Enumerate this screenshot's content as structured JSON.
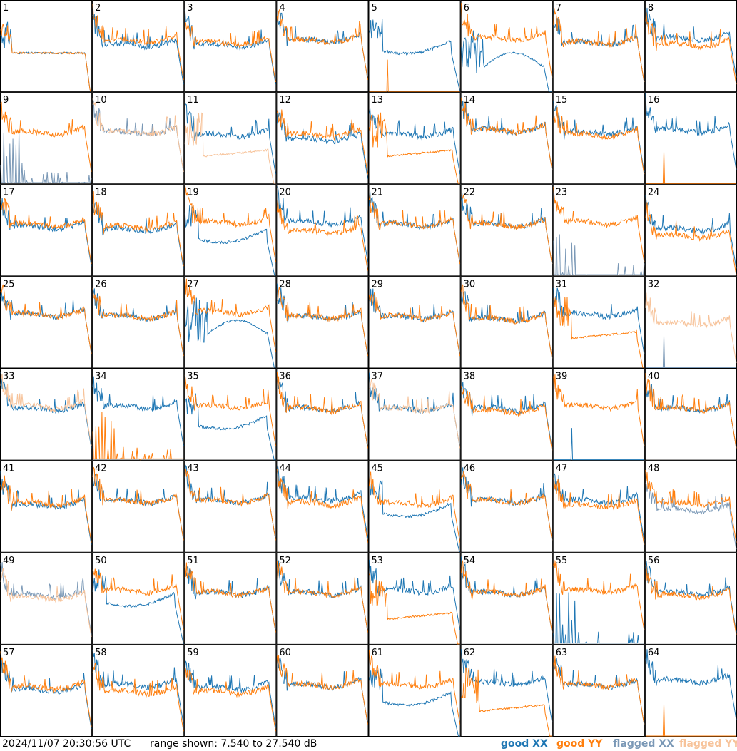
{
  "footer": {
    "timestamp": "2024/11/07 20:30:56 UTC",
    "range": "range shown: 7.540 to 27.540 dB"
  },
  "legend": [
    {
      "prefix": "good",
      "pol": "XX",
      "color": "#1f77b4"
    },
    {
      "prefix": "good",
      "pol": "YY",
      "color": "#ff7f0e"
    },
    {
      "prefix": "flagged",
      "pol": "XX",
      "color": "#7a98b6"
    },
    {
      "prefix": "flagged",
      "pol": "YY",
      "color": "#f7c39a"
    }
  ],
  "chart_data": {
    "type": "line",
    "layout": "small-multiples 8x8",
    "ylim": [
      7.54,
      27.54
    ],
    "y_unit": "dB",
    "panels": [
      {
        "id": "1",
        "xx": {
          "shape": "plateau",
          "level": 16,
          "flagged": false
        },
        "yy": {
          "shape": "plateau",
          "level": 16,
          "flagged": false
        }
      },
      {
        "id": "2",
        "xx": {
          "shape": "standard",
          "level": 17.5,
          "flagged": false
        },
        "yy": {
          "shape": "standard",
          "level": 18.5,
          "flagged": false
        }
      },
      {
        "id": "3",
        "xx": {
          "shape": "standard",
          "level": 17.5,
          "flagged": false
        },
        "yy": {
          "shape": "standard",
          "level": 18,
          "flagged": false
        }
      },
      {
        "id": "4",
        "xx": {
          "shape": "standard",
          "level": 18.5,
          "flagged": false
        },
        "yy": {
          "shape": "standard",
          "level": 18.5,
          "flagged": false
        }
      },
      {
        "id": "5",
        "xx": {
          "shape": "bowl",
          "level": 16.5,
          "flagged": false
        },
        "yy": {
          "shape": "spike",
          "level": 10,
          "flagged": false
        }
      },
      {
        "id": "6",
        "xx": {
          "shape": "dip",
          "level": 14,
          "flagged": false
        },
        "yy": {
          "shape": "standard",
          "level": 19,
          "flagged": false
        }
      },
      {
        "id": "7",
        "xx": {
          "shape": "standard",
          "level": 18,
          "flagged": false
        },
        "yy": {
          "shape": "standard",
          "level": 18,
          "flagged": false
        }
      },
      {
        "id": "8",
        "xx": {
          "shape": "standard",
          "level": 19,
          "flagged": false
        },
        "yy": {
          "shape": "standard",
          "level": 17.5,
          "flagged": false
        }
      },
      {
        "id": "9",
        "xx": {
          "shape": "spiky",
          "level": 9,
          "flagged": true
        },
        "yy": {
          "shape": "standard",
          "level": 18.5,
          "flagged": false
        }
      },
      {
        "id": "10",
        "xx": {
          "shape": "standard",
          "level": 18.5,
          "flagged": true
        },
        "yy": {
          "shape": "standard",
          "level": 18.5,
          "flagged": true
        }
      },
      {
        "id": "11",
        "xx": {
          "shape": "standard",
          "level": 18,
          "flagged": false
        },
        "yy": {
          "shape": "low",
          "level": 13.5,
          "flagged": true
        }
      },
      {
        "id": "12",
        "xx": {
          "shape": "standard",
          "level": 17,
          "flagged": false
        },
        "yy": {
          "shape": "standard",
          "level": 18,
          "flagged": false
        }
      },
      {
        "id": "13",
        "xx": {
          "shape": "standard",
          "level": 18,
          "flagged": false
        },
        "yy": {
          "shape": "low",
          "level": 13.5,
          "flagged": false
        }
      },
      {
        "id": "14",
        "xx": {
          "shape": "standard",
          "level": 19,
          "flagged": false
        },
        "yy": {
          "shape": "standard",
          "level": 19,
          "flagged": false
        }
      },
      {
        "id": "15",
        "xx": {
          "shape": "standard",
          "level": 18.5,
          "flagged": false
        },
        "yy": {
          "shape": "standard",
          "level": 18,
          "flagged": false
        }
      },
      {
        "id": "16",
        "xx": {
          "shape": "standard",
          "level": 19,
          "flagged": false
        },
        "yy": {
          "shape": "spike",
          "level": 10,
          "flagged": false
        }
      },
      {
        "id": "17",
        "xx": {
          "shape": "standard",
          "level": 18,
          "flagged": false
        },
        "yy": {
          "shape": "standard",
          "level": 18.5,
          "flagged": false
        }
      },
      {
        "id": "18",
        "xx": {
          "shape": "standard",
          "level": 17.5,
          "flagged": false
        },
        "yy": {
          "shape": "standard",
          "level": 18,
          "flagged": false
        }
      },
      {
        "id": "19",
        "xx": {
          "shape": "bowl",
          "level": 15.5,
          "flagged": false
        },
        "yy": {
          "shape": "standard",
          "level": 19,
          "flagged": false
        }
      },
      {
        "id": "20",
        "xx": {
          "shape": "standard",
          "level": 19,
          "flagged": false
        },
        "yy": {
          "shape": "standard",
          "level": 17,
          "flagged": false
        }
      },
      {
        "id": "21",
        "xx": {
          "shape": "standard",
          "level": 18.5,
          "flagged": false
        },
        "yy": {
          "shape": "standard",
          "level": 18.5,
          "flagged": false
        }
      },
      {
        "id": "22",
        "xx": {
          "shape": "standard",
          "level": 18.5,
          "flagged": false
        },
        "yy": {
          "shape": "standard",
          "level": 18.5,
          "flagged": false
        }
      },
      {
        "id": "23",
        "xx": {
          "shape": "spiky",
          "level": 9.5,
          "flagged": true
        },
        "yy": {
          "shape": "standard",
          "level": 19,
          "flagged": false
        }
      },
      {
        "id": "24",
        "xx": {
          "shape": "standard",
          "level": 17.5,
          "flagged": false
        },
        "yy": {
          "shape": "standard",
          "level": 16,
          "flagged": false
        }
      },
      {
        "id": "25",
        "xx": {
          "shape": "standard",
          "level": 19,
          "flagged": false
        },
        "yy": {
          "shape": "standard",
          "level": 19,
          "flagged": false
        }
      },
      {
        "id": "26",
        "xx": {
          "shape": "standard",
          "level": 18.5,
          "flagged": false
        },
        "yy": {
          "shape": "standard",
          "level": 18.5,
          "flagged": false
        }
      },
      {
        "id": "27",
        "xx": {
          "shape": "dip",
          "level": 16,
          "flagged": false
        },
        "yy": {
          "shape": "standard",
          "level": 19.5,
          "flagged": false
        }
      },
      {
        "id": "28",
        "xx": {
          "shape": "standard",
          "level": 18.5,
          "flagged": false
        },
        "yy": {
          "shape": "standard",
          "level": 18.5,
          "flagged": false
        }
      },
      {
        "id": "29",
        "xx": {
          "shape": "standard",
          "level": 18.5,
          "flagged": false
        },
        "yy": {
          "shape": "standard",
          "level": 18.5,
          "flagged": false
        }
      },
      {
        "id": "30",
        "xx": {
          "shape": "standard",
          "level": 18,
          "flagged": false
        },
        "yy": {
          "shape": "standard",
          "level": 18,
          "flagged": false
        }
      },
      {
        "id": "31",
        "xx": {
          "shape": "standard",
          "level": 19,
          "flagged": false
        },
        "yy": {
          "shape": "low",
          "level": 14,
          "flagged": false
        }
      },
      {
        "id": "32",
        "xx": {
          "shape": "spike",
          "level": 9,
          "flagged": true
        },
        "yy": {
          "shape": "standard",
          "level": 17,
          "flagged": true
        }
      },
      {
        "id": "33",
        "xx": {
          "shape": "standard",
          "level": 18.5,
          "flagged": false
        },
        "yy": {
          "shape": "standard",
          "level": 19,
          "flagged": true
        }
      },
      {
        "id": "34",
        "xx": {
          "shape": "standard",
          "level": 19,
          "flagged": false
        },
        "yy": {
          "shape": "spiky",
          "level": 8,
          "flagged": false
        }
      },
      {
        "id": "35",
        "xx": {
          "shape": "bowl",
          "level": 15,
          "flagged": false
        },
        "yy": {
          "shape": "standard",
          "level": 19,
          "flagged": false
        }
      },
      {
        "id": "36",
        "xx": {
          "shape": "standard",
          "level": 18.5,
          "flagged": false
        },
        "yy": {
          "shape": "standard",
          "level": 18.5,
          "flagged": false
        }
      },
      {
        "id": "37",
        "xx": {
          "shape": "standard",
          "level": 18.5,
          "flagged": false
        },
        "yy": {
          "shape": "standard",
          "level": 18.5,
          "flagged": true
        }
      },
      {
        "id": "38",
        "xx": {
          "shape": "standard",
          "level": 18.5,
          "flagged": false
        },
        "yy": {
          "shape": "standard",
          "level": 18,
          "flagged": false
        }
      },
      {
        "id": "39",
        "xx": {
          "shape": "spike",
          "level": 8,
          "flagged": false
        },
        "yy": {
          "shape": "standard",
          "level": 19,
          "flagged": false
        }
      },
      {
        "id": "40",
        "xx": {
          "shape": "standard",
          "level": 18.5,
          "flagged": false
        },
        "yy": {
          "shape": "standard",
          "level": 18.5,
          "flagged": false
        }
      },
      {
        "id": "41",
        "xx": {
          "shape": "standard",
          "level": 17.5,
          "flagged": false
        },
        "yy": {
          "shape": "standard",
          "level": 18,
          "flagged": false
        }
      },
      {
        "id": "42",
        "xx": {
          "shape": "standard",
          "level": 18.5,
          "flagged": false
        },
        "yy": {
          "shape": "standard",
          "level": 18.5,
          "flagged": false
        }
      },
      {
        "id": "43",
        "xx": {
          "shape": "standard",
          "level": 18.5,
          "flagged": false
        },
        "yy": {
          "shape": "standard",
          "level": 18.5,
          "flagged": false
        }
      },
      {
        "id": "44",
        "xx": {
          "shape": "standard",
          "level": 19,
          "flagged": false
        },
        "yy": {
          "shape": "standard",
          "level": 18,
          "flagged": false
        }
      },
      {
        "id": "45",
        "xx": {
          "shape": "bowl",
          "level": 16,
          "flagged": false
        },
        "yy": {
          "shape": "standard",
          "level": 18,
          "flagged": false
        }
      },
      {
        "id": "46",
        "xx": {
          "shape": "standard",
          "level": 18.5,
          "flagged": false
        },
        "yy": {
          "shape": "standard",
          "level": 18.5,
          "flagged": false
        }
      },
      {
        "id": "47",
        "xx": {
          "shape": "standard",
          "level": 18.5,
          "flagged": false
        },
        "yy": {
          "shape": "standard",
          "level": 17.5,
          "flagged": false
        }
      },
      {
        "id": "48",
        "xx": {
          "shape": "standard",
          "level": 16.5,
          "flagged": true
        },
        "yy": {
          "shape": "standard",
          "level": 18,
          "flagged": false
        }
      },
      {
        "id": "49",
        "xx": {
          "shape": "standard",
          "level": 18,
          "flagged": true
        },
        "yy": {
          "shape": "standard",
          "level": 17.5,
          "flagged": true
        }
      },
      {
        "id": "50",
        "xx": {
          "shape": "bowl",
          "level": 16.5,
          "flagged": false
        },
        "yy": {
          "shape": "standard",
          "level": 19,
          "flagged": false
        }
      },
      {
        "id": "51",
        "xx": {
          "shape": "standard",
          "level": 18.5,
          "flagged": false
        },
        "yy": {
          "shape": "standard",
          "level": 18.5,
          "flagged": false
        }
      },
      {
        "id": "52",
        "xx": {
          "shape": "standard",
          "level": 18.5,
          "flagged": false
        },
        "yy": {
          "shape": "standard",
          "level": 18.5,
          "flagged": false
        }
      },
      {
        "id": "53",
        "xx": {
          "shape": "standard",
          "level": 19,
          "flagged": false
        },
        "yy": {
          "shape": "low",
          "level": 13,
          "flagged": false
        }
      },
      {
        "id": "54",
        "xx": {
          "shape": "standard",
          "level": 18.5,
          "flagged": false
        },
        "yy": {
          "shape": "standard",
          "level": 18.5,
          "flagged": false
        }
      },
      {
        "id": "55",
        "xx": {
          "shape": "spiky",
          "level": 9,
          "flagged": false
        },
        "yy": {
          "shape": "standard",
          "level": 19,
          "flagged": false
        }
      },
      {
        "id": "56",
        "xx": {
          "shape": "standard",
          "level": 18.5,
          "flagged": false
        },
        "yy": {
          "shape": "standard",
          "level": 18,
          "flagged": false
        }
      },
      {
        "id": "57",
        "xx": {
          "shape": "standard",
          "level": 17.5,
          "flagged": false
        },
        "yy": {
          "shape": "standard",
          "level": 18,
          "flagged": false
        }
      },
      {
        "id": "58",
        "xx": {
          "shape": "standard",
          "level": 18.5,
          "flagged": false
        },
        "yy": {
          "shape": "standard",
          "level": 17,
          "flagged": false
        }
      },
      {
        "id": "59",
        "xx": {
          "shape": "standard",
          "level": 18,
          "flagged": false
        },
        "yy": {
          "shape": "standard",
          "level": 17,
          "flagged": false
        }
      },
      {
        "id": "60",
        "xx": {
          "shape": "standard",
          "level": 18.5,
          "flagged": false
        },
        "yy": {
          "shape": "standard",
          "level": 18.5,
          "flagged": false
        }
      },
      {
        "id": "61",
        "xx": {
          "shape": "bowl",
          "level": 15,
          "flagged": false
        },
        "yy": {
          "shape": "standard",
          "level": 18.5,
          "flagged": false
        }
      },
      {
        "id": "62",
        "xx": {
          "shape": "standard",
          "level": 19,
          "flagged": false
        },
        "yy": {
          "shape": "low",
          "level": 13,
          "flagged": false
        }
      },
      {
        "id": "63",
        "xx": {
          "shape": "standard",
          "level": 18.5,
          "flagged": false
        },
        "yy": {
          "shape": "standard",
          "level": 18.5,
          "flagged": false
        }
      },
      {
        "id": "64",
        "xx": {
          "shape": "standard",
          "level": 19.5,
          "flagged": false
        },
        "yy": {
          "shape": "spike",
          "level": 9,
          "flagged": false
        }
      }
    ]
  }
}
